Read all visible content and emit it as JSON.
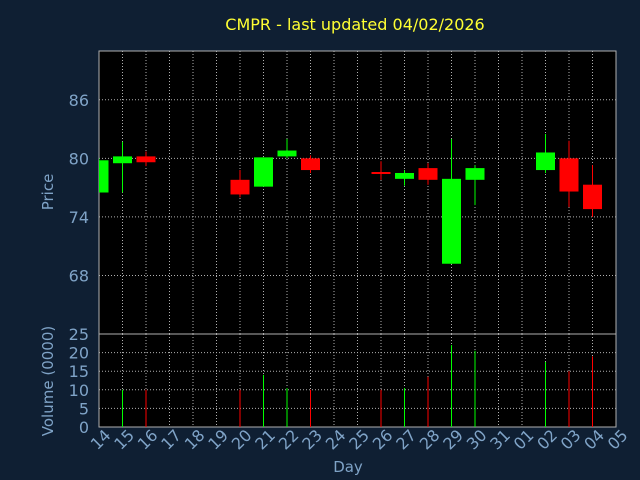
{
  "title": "CMPR - last updated 04/02/2026",
  "colors": {
    "background": "#0f1f33",
    "panel": "#000000",
    "grid": "#b0b0b0",
    "title": "#ffff33",
    "axis_text": "#7fa3c7",
    "up": "#00ff00",
    "down": "#ff0000"
  },
  "chart_data": [
    {
      "type": "candlestick",
      "title": "CMPR - last updated 04/02/2026",
      "ylabel": "Price",
      "ylim": [
        62,
        91
      ],
      "yticks": [
        68,
        74,
        80,
        86
      ],
      "grid": true,
      "x_tick_labels": [
        "14",
        "15",
        "16",
        "17",
        "18",
        "19",
        "20",
        "21",
        "22",
        "23",
        "24",
        "25",
        "26",
        "27",
        "28",
        "29",
        "30",
        "31",
        "01",
        "02",
        "03",
        "04",
        "05"
      ],
      "candles": [
        {
          "day": "14",
          "open": 76.5,
          "high": 80.0,
          "low": 76.5,
          "close": 79.8
        },
        {
          "day": "15",
          "open": 79.5,
          "high": 81.7,
          "low": 76.5,
          "close": 80.2
        },
        {
          "day": "16",
          "open": 80.2,
          "high": 80.7,
          "low": 79.2,
          "close": 79.6
        },
        {
          "day": "20",
          "open": 77.8,
          "high": 78.8,
          "low": 76.0,
          "close": 76.3
        },
        {
          "day": "21",
          "open": 77.1,
          "high": 80.1,
          "low": 77.1,
          "close": 80.1
        },
        {
          "day": "22",
          "open": 80.2,
          "high": 82.0,
          "low": 80.0,
          "close": 80.8
        },
        {
          "day": "23",
          "open": 80.0,
          "high": 80.3,
          "low": 78.5,
          "close": 78.8
        },
        {
          "day": "26",
          "open": 78.6,
          "high": 79.7,
          "low": 77.8,
          "close": 78.4
        },
        {
          "day": "27",
          "open": 77.9,
          "high": 78.8,
          "low": 77.2,
          "close": 78.5
        },
        {
          "day": "28",
          "open": 79.0,
          "high": 79.5,
          "low": 77.3,
          "close": 77.8
        },
        {
          "day": "29",
          "open": 69.2,
          "high": 82.0,
          "low": 69.2,
          "close": 77.9
        },
        {
          "day": "30",
          "open": 77.8,
          "high": 79.3,
          "low": 75.2,
          "close": 79.0
        },
        {
          "day": "02",
          "open": 78.8,
          "high": 82.5,
          "low": 78.5,
          "close": 80.6
        },
        {
          "day": "03",
          "open": 80.0,
          "high": 81.8,
          "low": 75.0,
          "close": 76.6
        },
        {
          "day": "04",
          "open": 77.3,
          "high": 79.3,
          "low": 74.0,
          "close": 74.8
        }
      ]
    },
    {
      "type": "bar",
      "ylabel": "Volume (0000)",
      "xlabel": "Day",
      "ylim": [
        0,
        25
      ],
      "yticks": [
        0,
        5,
        10,
        15,
        20,
        25
      ],
      "grid": true,
      "x_tick_labels": [
        "14",
        "15",
        "16",
        "17",
        "18",
        "19",
        "20",
        "21",
        "22",
        "23",
        "24",
        "25",
        "26",
        "27",
        "28",
        "29",
        "30",
        "31",
        "01",
        "02",
        "03",
        "04",
        "05"
      ],
      "bars": [
        {
          "day": "15",
          "value": 10.0,
          "direction": "up"
        },
        {
          "day": "16",
          "value": 10.0,
          "direction": "down"
        },
        {
          "day": "20",
          "value": 10.0,
          "direction": "down"
        },
        {
          "day": "21",
          "value": 14.0,
          "direction": "up"
        },
        {
          "day": "22",
          "value": 10.5,
          "direction": "up"
        },
        {
          "day": "23",
          "value": 10.0,
          "direction": "down"
        },
        {
          "day": "26",
          "value": 10.0,
          "direction": "down"
        },
        {
          "day": "27",
          "value": 10.5,
          "direction": "up"
        },
        {
          "day": "28",
          "value": 13.5,
          "direction": "down"
        },
        {
          "day": "29",
          "value": 22.0,
          "direction": "up"
        },
        {
          "day": "30",
          "value": 20.5,
          "direction": "up"
        },
        {
          "day": "02",
          "value": 17.5,
          "direction": "up"
        },
        {
          "day": "03",
          "value": 15.0,
          "direction": "down"
        },
        {
          "day": "04",
          "value": 19.0,
          "direction": "down"
        }
      ]
    }
  ]
}
